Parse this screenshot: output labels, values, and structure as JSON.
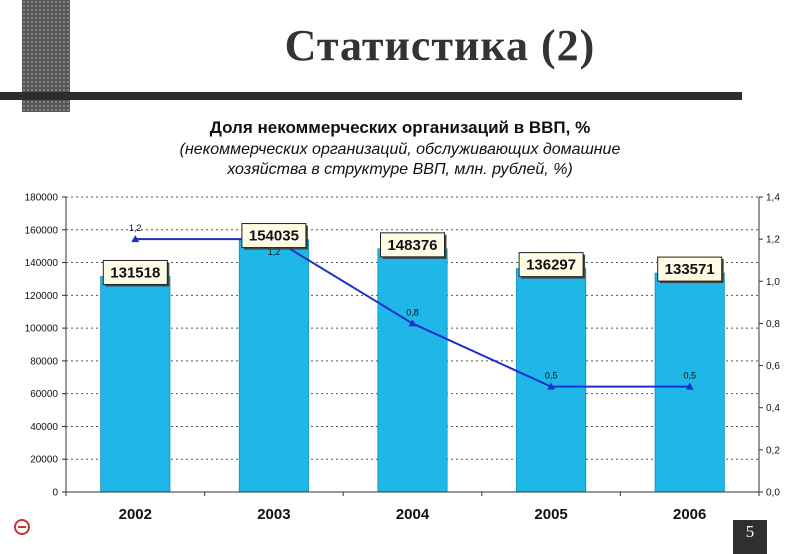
{
  "slide": {
    "title": "Статистика (2)",
    "page_number": "5"
  },
  "colors": {
    "bar_fill": "#1FB7E8",
    "line": "#1B2FCC",
    "grid": "#555555",
    "slide_dark": "#2d2d2d"
  },
  "chart_data": {
    "type": "bar",
    "title": "Доля некоммерческих организаций в ВВП, %",
    "subtitle_lines": [
      "(некоммерческих организаций, обслуживающих домашние",
      "хозяйства в структуре ВВП, млн. рублей, %)"
    ],
    "categories": [
      "2002",
      "2003",
      "2004",
      "2005",
      "2006"
    ],
    "series": [
      {
        "kind": "bar",
        "axis": "left",
        "values": [
          131518,
          154035,
          148376,
          136297,
          133571
        ],
        "labels": [
          "131518",
          "154035",
          "148376",
          "136297",
          "133571"
        ]
      },
      {
        "kind": "line",
        "axis": "right",
        "values": [
          1.2,
          1.2,
          0.8,
          0.5,
          0.5
        ],
        "labels": [
          "1,2",
          "1,2",
          "0,8",
          "0,5",
          "0,5"
        ]
      }
    ],
    "y_left": {
      "range": [
        0,
        180000
      ],
      "ticks": [
        "0",
        "20000",
        "40000",
        "60000",
        "80000",
        "100000",
        "120000",
        "140000",
        "160000",
        "180000"
      ]
    },
    "y_right": {
      "range": [
        0,
        1.4
      ],
      "ticks": [
        "0,0",
        "0,2",
        "0,4",
        "0,6",
        "0,8",
        "1,0",
        "1,2",
        "1,4"
      ]
    },
    "grid": true
  }
}
